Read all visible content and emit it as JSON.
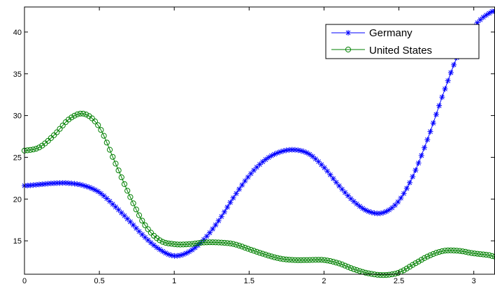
{
  "chart_data": {
    "type": "line",
    "title": "",
    "xlabel": "",
    "ylabel": "",
    "xlim": [
      0,
      3.1416
    ],
    "ylim": [
      11,
      43
    ],
    "x_ticks": [
      0,
      0.5,
      1,
      1.5,
      2,
      2.5,
      3
    ],
    "x_tick_labels": [
      "0",
      "0.5",
      "1",
      "1.5",
      "2",
      "2.5",
      "3"
    ],
    "y_ticks": [
      15,
      20,
      25,
      30,
      35,
      40
    ],
    "y_tick_labels": [
      "15",
      "20",
      "25",
      "30",
      "35",
      "40"
    ],
    "grid": false,
    "legend_position": "top-right",
    "x": [
      0,
      0.1,
      0.2,
      0.3,
      0.4,
      0.5,
      0.6,
      0.7,
      0.8,
      0.9,
      1.0,
      1.1,
      1.2,
      1.3,
      1.4,
      1.5,
      1.6,
      1.7,
      1.8,
      1.9,
      2.0,
      2.1,
      2.2,
      2.3,
      2.4,
      2.5,
      2.6,
      2.7,
      2.8,
      2.9,
      3.0,
      3.1,
      3.1416
    ],
    "series": [
      {
        "name": "Germany",
        "color": "#0000ff",
        "marker": "star",
        "values": [
          21.6,
          21.75,
          21.9,
          21.9,
          21.6,
          20.8,
          19.2,
          17.4,
          15.5,
          14.0,
          13.2,
          13.7,
          15.2,
          17.5,
          20.3,
          22.8,
          24.6,
          25.6,
          25.9,
          25.4,
          23.8,
          21.6,
          19.7,
          18.5,
          18.4,
          19.8,
          23.0,
          27.6,
          32.8,
          37.5,
          40.6,
          42.2,
          42.5
        ]
      },
      {
        "name": "United States",
        "color": "#008000",
        "marker": "circle",
        "values": [
          25.8,
          26.2,
          27.7,
          29.6,
          30.2,
          28.6,
          24.6,
          20.5,
          17.0,
          15.1,
          14.6,
          14.6,
          14.8,
          14.8,
          14.6,
          14.0,
          13.4,
          12.9,
          12.7,
          12.7,
          12.7,
          12.3,
          11.6,
          11.1,
          10.9,
          11.2,
          12.2,
          13.2,
          13.8,
          13.8,
          13.5,
          13.3,
          13.1
        ]
      }
    ]
  },
  "legend": {
    "items": [
      {
        "label": "Germany"
      },
      {
        "label": "United States"
      }
    ]
  }
}
